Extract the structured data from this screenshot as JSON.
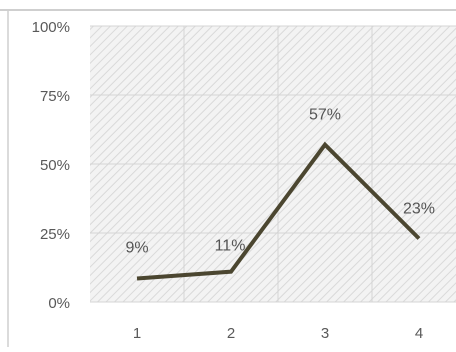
{
  "chart_data": {
    "type": "line",
    "title": "",
    "xlabel": "",
    "ylabel": "",
    "categories": [
      "1",
      "2",
      "3",
      "4"
    ],
    "series": [
      {
        "values": [
          8.5,
          11,
          57,
          23
        ],
        "data_labels": [
          "9%",
          "11%",
          "57%",
          "23%"
        ]
      }
    ],
    "ylim": [
      0,
      100
    ],
    "yticks": [
      "0%",
      "25%",
      "50%",
      "75%",
      "100%"
    ],
    "grid": true,
    "legend": "none"
  },
  "colors": {
    "line": "#4b4630",
    "plot_fill": "#f3f3f3",
    "hatch": "#d9d9d9",
    "grid": "#d4d4d4",
    "tick_text": "#595959",
    "label_text": "#555555",
    "frame": "#cfcfcf"
  }
}
